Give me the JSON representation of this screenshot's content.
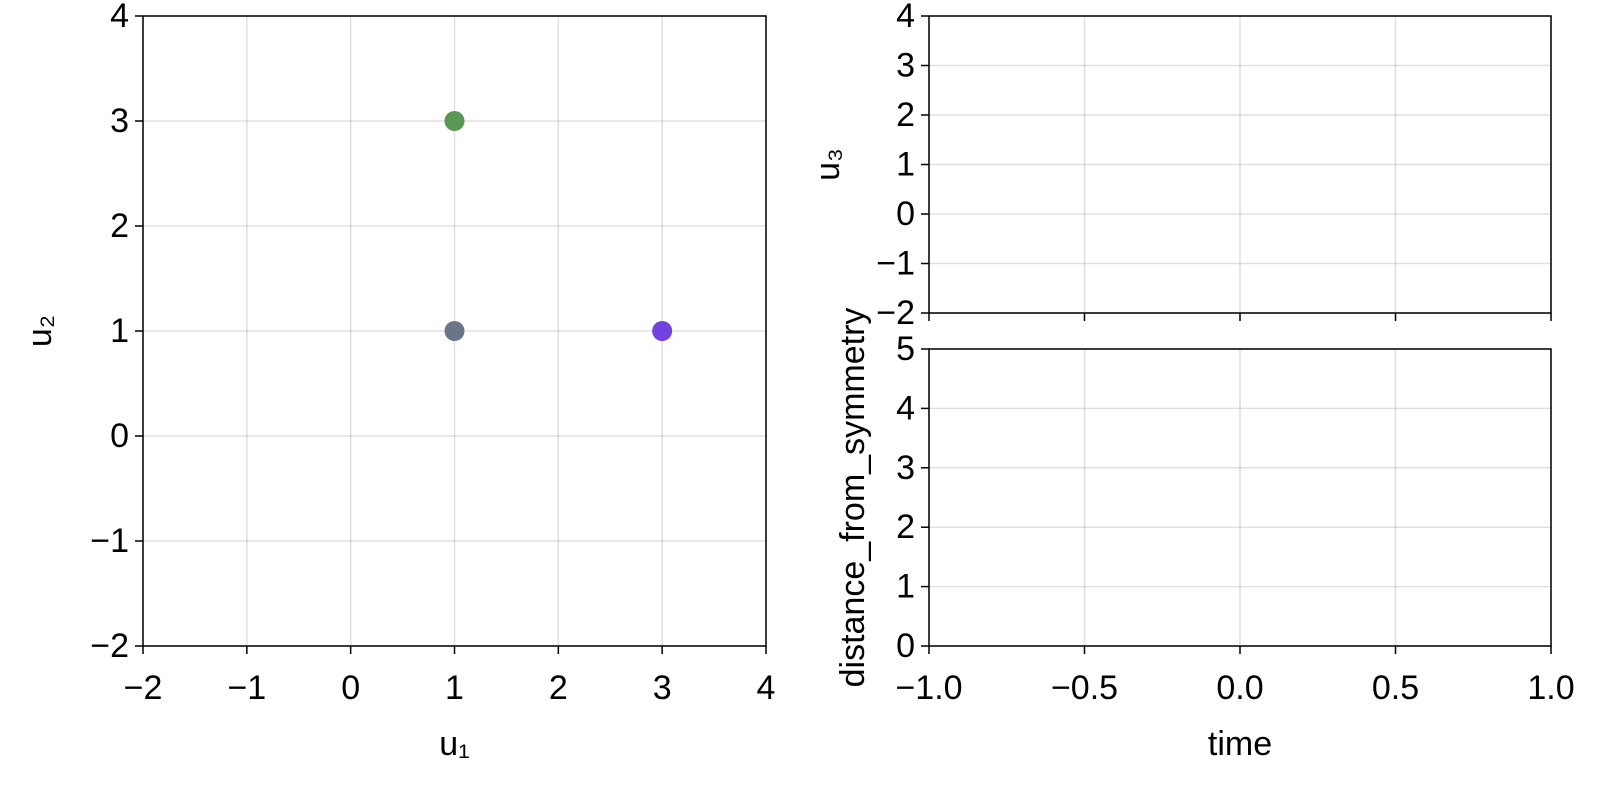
{
  "chart_data": [
    {
      "type": "scatter",
      "x": [
        1,
        1,
        3
      ],
      "values": [
        3,
        1,
        1
      ],
      "colors": [
        "#5b9853",
        "#6a7588",
        "#7242e0"
      ],
      "xlabel": "u₁",
      "ylabel": "u₂",
      "grid": true,
      "xlim": [
        -2,
        4
      ],
      "ylim": [
        -2,
        4
      ],
      "xticks": [
        {
          "value": -2,
          "label": "−2"
        },
        {
          "value": -1,
          "label": "−1"
        },
        0,
        1,
        2,
        3,
        4
      ],
      "yticks": [
        {
          "value": -2,
          "label": "−2"
        },
        {
          "value": -1,
          "label": "−1"
        },
        0,
        1,
        2,
        3,
        4
      ]
    },
    {
      "type": "line",
      "series": [],
      "ylabel": "u₃",
      "grid": true,
      "xlim": [
        -1,
        1
      ],
      "ylim": [
        -2,
        4
      ],
      "xticks": [
        -1,
        -0.5,
        0,
        0.5,
        1
      ],
      "xticklabels": false,
      "yticks": [
        {
          "value": -2,
          "label": "−2"
        },
        {
          "value": -1,
          "label": "−1"
        },
        0,
        1,
        2,
        3,
        4
      ]
    },
    {
      "type": "line",
      "series": [],
      "xlabel": "time",
      "ylabel": "distance_from_symmetry",
      "grid": true,
      "xlim": [
        -1,
        1
      ],
      "ylim": [
        0,
        5
      ],
      "xticks": [
        {
          "value": -1,
          "label": "−1.0"
        },
        {
          "value": -0.5,
          "label": "−0.5"
        },
        {
          "value": 0,
          "label": "0.0"
        },
        {
          "value": 0.5,
          "label": "0.5"
        },
        {
          "value": 1,
          "label": "1.0"
        }
      ],
      "yticks": [
        0,
        1,
        2,
        3,
        4,
        5
      ]
    }
  ]
}
